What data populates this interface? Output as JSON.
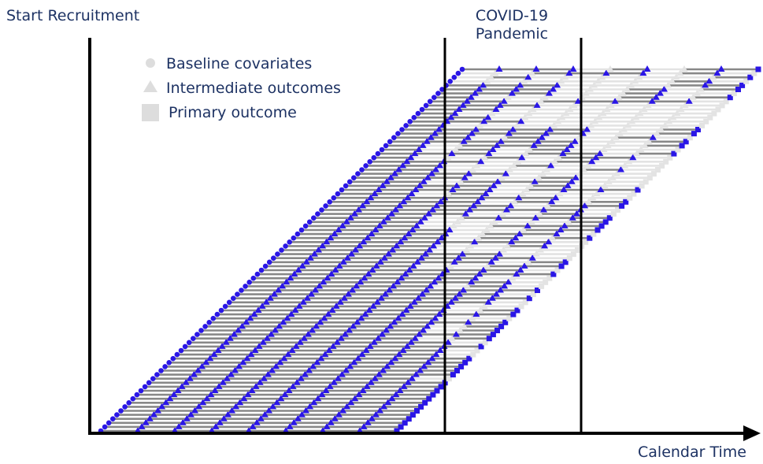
{
  "header": {
    "start_label": "Start Recruitment",
    "event_label_line1": "COVID-19",
    "event_label_line2": "Pandemic"
  },
  "legend": {
    "items": [
      "Baseline covariates",
      "Intermediate outcomes",
      "Primary outcome"
    ]
  },
  "axis": {
    "x_label": "Calendar Time"
  }
}
